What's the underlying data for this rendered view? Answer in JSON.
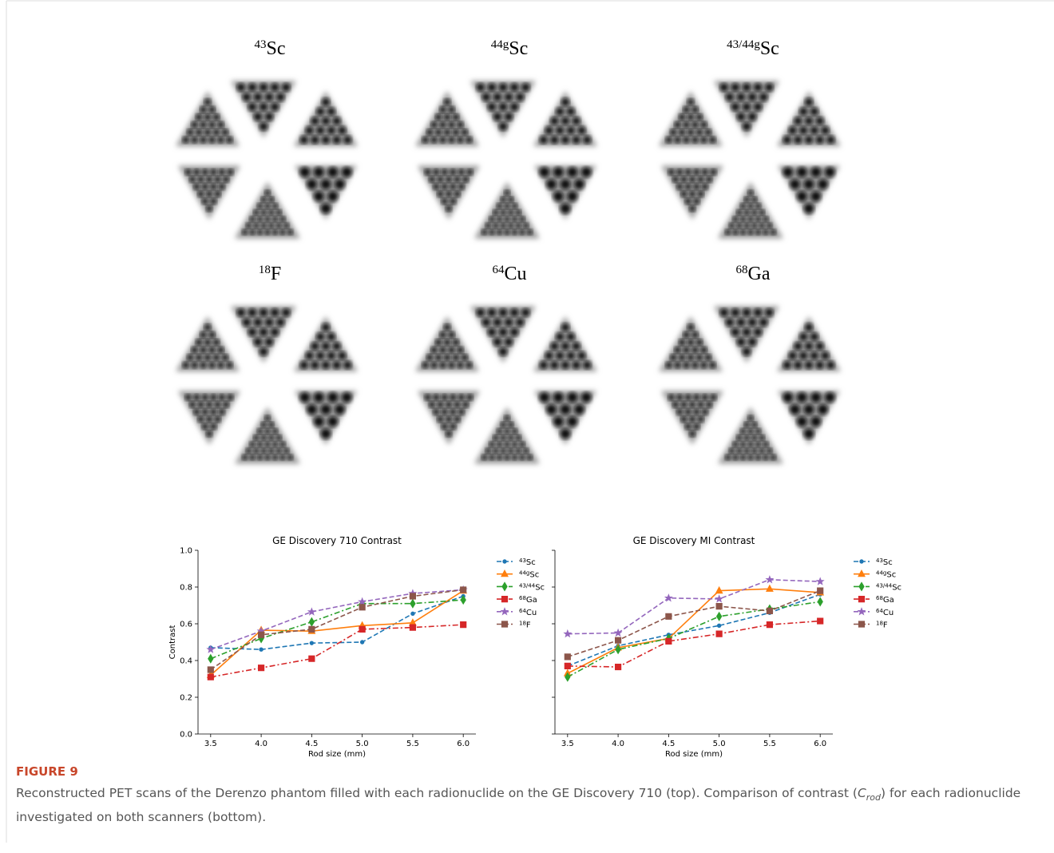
{
  "panels": [
    {
      "sup": "43",
      "name": "Sc"
    },
    {
      "sup": "44g",
      "name": "Sc"
    },
    {
      "sup": "43/44g",
      "name": "Sc"
    },
    {
      "sup": "18",
      "name": "F"
    },
    {
      "sup": "64",
      "name": "Cu"
    },
    {
      "sup": "68",
      "name": "Ga"
    }
  ],
  "chart_data": [
    {
      "type": "line",
      "title": "GE Discovery 710 Contrast",
      "x_label": "Rod size (mm)",
      "y_label": "Contrast",
      "x": [
        3.5,
        4.0,
        4.5,
        5.0,
        5.5,
        6.0
      ],
      "xlim": [
        3.375,
        6.125
      ],
      "xticks": [
        3.5,
        {
          "value": 4.0,
          "label": "4.0"
        },
        4.5,
        {
          "value": 5.0,
          "label": "5.0"
        },
        5.5,
        {
          "value": 6.0,
          "label": "6.0"
        }
      ],
      "ylim": [
        0,
        1
      ],
      "yticks": [
        {
          "value": 0,
          "label": "0.0"
        },
        0.2,
        0.4,
        0.6,
        0.8,
        {
          "value": 1,
          "label": "1.0"
        }
      ],
      "ytick_labels": true,
      "grid": false,
      "legend": "outside-right",
      "series": [
        {
          "sup": "43",
          "name": "Sc",
          "color": "#1f77b4",
          "linestyle": "dashed",
          "marker": "circle",
          "values": [
            0.47,
            0.46,
            0.495,
            0.5,
            0.655,
            0.75
          ]
        },
        {
          "sup": "44g",
          "name": "Sc",
          "color": "#ff7f0e",
          "linestyle": "solid",
          "marker": "triangle",
          "values": [
            0.32,
            0.565,
            0.56,
            0.59,
            0.605,
            0.78
          ]
        },
        {
          "sup": "43/44",
          "name": "Sc",
          "color": "#2ca02c",
          "linestyle": "dashdot",
          "marker": "diamond",
          "values": [
            0.41,
            0.52,
            0.61,
            0.71,
            0.71,
            0.73
          ]
        },
        {
          "sup": "68",
          "name": "Ga",
          "color": "#d62728",
          "linestyle": "dashdot",
          "marker": "square",
          "values": [
            0.31,
            0.36,
            0.41,
            0.57,
            0.58,
            0.595
          ]
        },
        {
          "sup": "64",
          "name": "Cu",
          "color": "#9467bd",
          "linestyle": "dashed",
          "marker": "star",
          "values": [
            0.46,
            0.56,
            0.665,
            0.72,
            0.765,
            0.785
          ]
        },
        {
          "sup": "18",
          "name": "F",
          "color": "#8c564b",
          "linestyle": "dashed",
          "marker": "square",
          "values": [
            0.35,
            0.54,
            0.57,
            0.69,
            0.75,
            0.785
          ]
        }
      ]
    },
    {
      "type": "line",
      "title": "GE Discovery MI Contrast",
      "x_label": "Rod size (mm)",
      "x": [
        3.5,
        4.0,
        4.5,
        5.0,
        5.5,
        6.0
      ],
      "xlim": [
        3.375,
        6.125
      ],
      "xticks": [
        3.5,
        {
          "value": 4.0,
          "label": "4.0"
        },
        4.5,
        {
          "value": 5.0,
          "label": "5.0"
        },
        5.5,
        {
          "value": 6.0,
          "label": "6.0"
        }
      ],
      "ylim": [
        0,
        1
      ],
      "yticks": [
        0,
        0.2,
        0.4,
        0.6,
        0.8,
        1
      ],
      "ytick_labels": false,
      "grid": false,
      "legend": "outside-right",
      "series": [
        {
          "sup": "43",
          "name": "Sc",
          "color": "#1f77b4",
          "linestyle": "dashed",
          "marker": "circle",
          "values": [
            0.37,
            0.48,
            0.54,
            0.59,
            0.66,
            0.76
          ]
        },
        {
          "sup": "44g",
          "name": "Sc",
          "color": "#ff7f0e",
          "linestyle": "solid",
          "marker": "triangle",
          "values": [
            0.33,
            0.47,
            0.52,
            0.78,
            0.79,
            0.77
          ]
        },
        {
          "sup": "43/44",
          "name": "Sc",
          "color": "#2ca02c",
          "linestyle": "dashdot",
          "marker": "diamond",
          "values": [
            0.31,
            0.46,
            0.52,
            0.64,
            0.68,
            0.72
          ]
        },
        {
          "sup": "68",
          "name": "Ga",
          "color": "#d62728",
          "linestyle": "dashdot",
          "marker": "square",
          "values": [
            0.37,
            0.365,
            0.505,
            0.545,
            0.595,
            0.615
          ]
        },
        {
          "sup": "64",
          "name": "Cu",
          "color": "#9467bd",
          "linestyle": "dashed",
          "marker": "star",
          "values": [
            0.545,
            0.55,
            0.74,
            0.735,
            0.84,
            0.83
          ]
        },
        {
          "sup": "18",
          "name": "F",
          "color": "#8c564b",
          "linestyle": "dashed",
          "marker": "square",
          "values": [
            0.42,
            0.51,
            0.64,
            0.695,
            0.67,
            0.78
          ]
        }
      ]
    }
  ],
  "figure": {
    "label": "FIGURE 9",
    "caption": [
      "Reconstructed PET scans of the Derenzo phantom filled with each radionuclide on the GE Discovery 710 (top). Comparison of contrast (",
      "C",
      "rod",
      ") for each radionuclide investigated on both scanners (bottom)."
    ]
  }
}
